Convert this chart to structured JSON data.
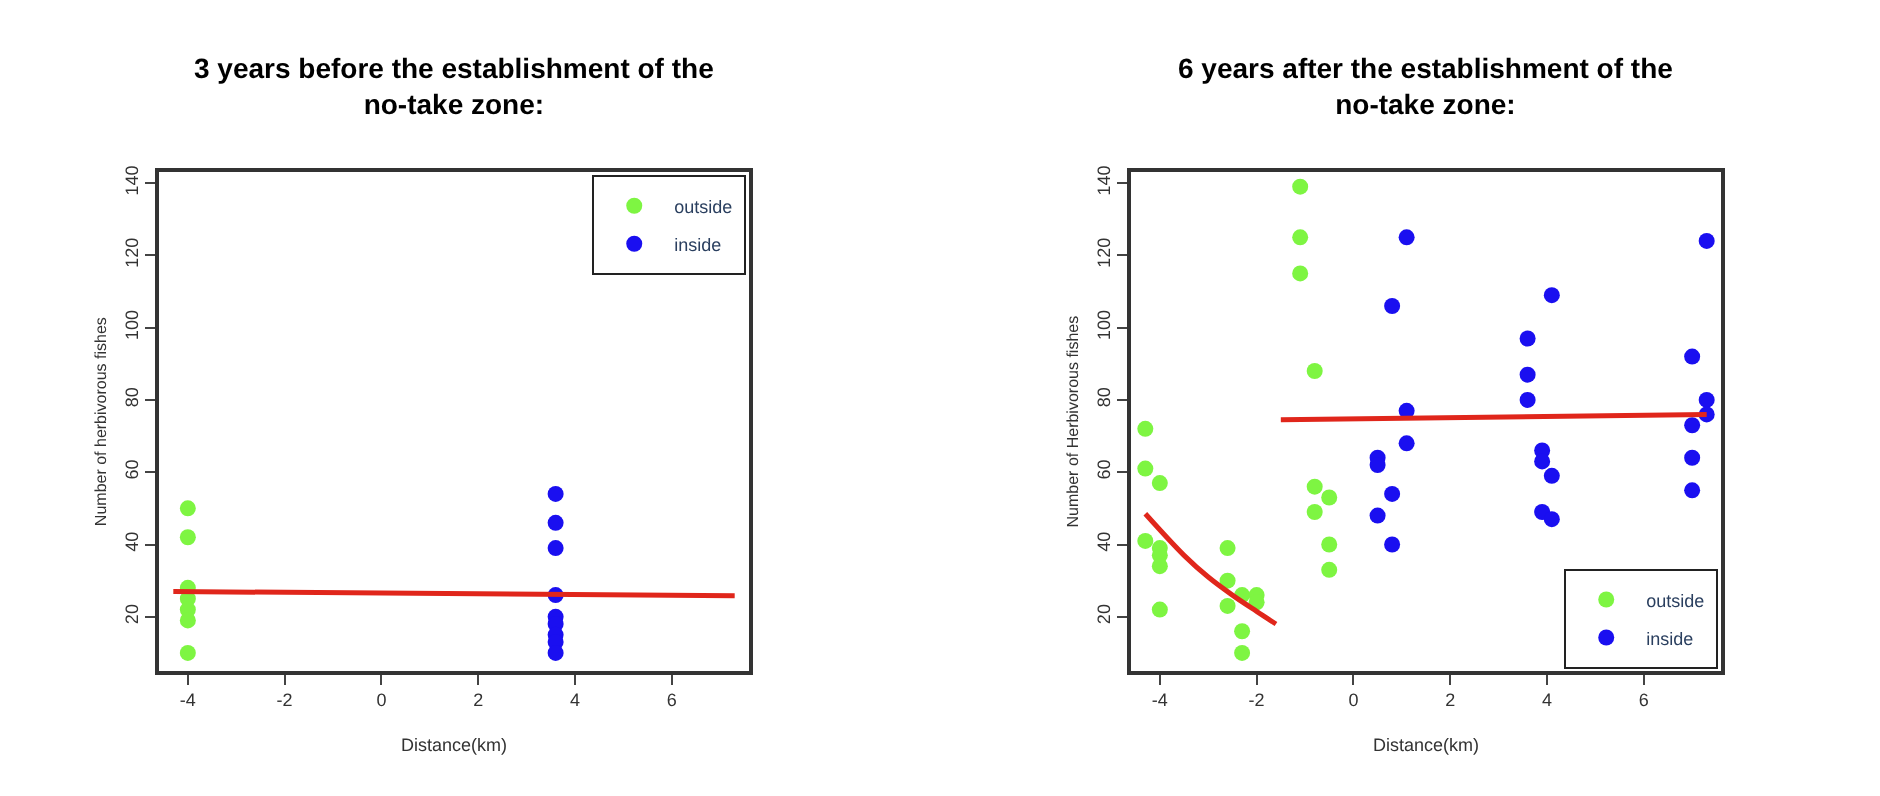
{
  "chart_data": [
    {
      "type": "scatter",
      "title": "3 years before the establishment of the\nno-take zone:",
      "xlabel": "Distance(km)",
      "ylabel": "Number of herbivorous fishes",
      "xlim": [
        -4.6,
        7.6
      ],
      "ylim": [
        5,
        143
      ],
      "xticks": [
        -4,
        -2,
        0,
        2,
        4,
        6
      ],
      "yticks": [
        20,
        40,
        60,
        80,
        100,
        120,
        140
      ],
      "legend": "top right",
      "series": [
        {
          "name": "outside",
          "color": "#7ef542",
          "marker": "circle",
          "x": [
            -4,
            -4,
            -4,
            -4,
            -4,
            -4,
            -4
          ],
          "values": [
            50,
            42,
            28,
            25,
            22,
            19,
            10
          ]
        },
        {
          "name": "inside",
          "color": "#1a0ff0",
          "marker": "circle",
          "x": [
            3.6,
            3.6,
            3.6,
            3.6,
            3.6,
            3.6,
            3.6,
            3.6,
            3.6
          ],
          "values": [
            54,
            46,
            39,
            26,
            20,
            18,
            15,
            13,
            10
          ]
        },
        {
          "color": "#e0261b",
          "type": "line",
          "x": [
            -4.3,
            7.3
          ],
          "values": [
            27,
            25.8
          ]
        }
      ]
    },
    {
      "type": "scatter",
      "title": "6 years after the establishment of the\nno-take zone:",
      "xlabel": "Distance(km)",
      "ylabel": "Number of Herbivorous fishes",
      "xlim": [
        -4.6,
        7.6
      ],
      "ylim": [
        5,
        143
      ],
      "xticks": [
        -4,
        -2,
        0,
        2,
        4,
        6
      ],
      "yticks": [
        20,
        40,
        60,
        80,
        100,
        120,
        140
      ],
      "legend": "bottom right",
      "series": [
        {
          "name": "outside",
          "color": "#7ef542",
          "marker": "circle",
          "x": [
            -4.3,
            -4.3,
            -4.3,
            -4,
            -4,
            -4,
            -4,
            -4,
            -2.6,
            -2.6,
            -2.6,
            -2.3,
            -2.3,
            -2.3,
            -2,
            -2,
            -1.1,
            -1.1,
            -1.1,
            -0.8,
            -0.8,
            -0.8,
            -0.5,
            -0.5,
            -0.5
          ],
          "values": [
            72,
            61,
            41,
            57,
            39,
            37,
            34,
            22,
            39,
            30,
            23,
            26,
            16,
            10,
            26,
            24,
            139,
            125,
            115,
            88,
            56,
            49,
            53,
            40,
            33
          ]
        },
        {
          "name": "inside",
          "color": "#1a0ff0",
          "marker": "circle",
          "x": [
            0.5,
            0.5,
            0.5,
            0.8,
            0.8,
            0.8,
            1.1,
            1.1,
            1.1,
            3.6,
            3.6,
            3.6,
            3.9,
            3.9,
            3.9,
            4.1,
            4.1,
            4.1,
            7,
            7,
            7,
            7,
            7.3,
            7.3,
            7.3
          ],
          "values": [
            64,
            62,
            48,
            106,
            54,
            40,
            125,
            77,
            68,
            97,
            87,
            80,
            66,
            63,
            49,
            109,
            59,
            47,
            92,
            73,
            64,
            55,
            124,
            80,
            76
          ]
        },
        {
          "color": "#e0261b",
          "type": "line",
          "x": [
            -4.3,
            -3.5,
            -3,
            -2.5,
            -2,
            -1.6
          ],
          "values": [
            48.5,
            37,
            31,
            26,
            21.5,
            18
          ]
        },
        {
          "color": "#e0261b",
          "type": "line",
          "x": [
            -1.5,
            7.3
          ],
          "values": [
            74.5,
            76
          ]
        }
      ]
    }
  ]
}
